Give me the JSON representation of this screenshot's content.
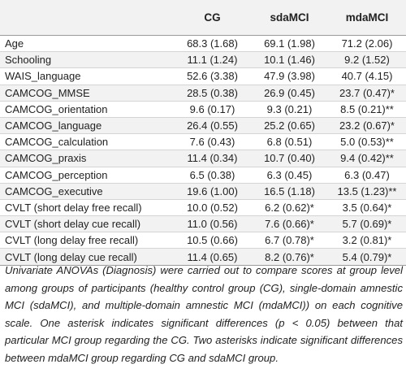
{
  "table": {
    "columns": [
      "",
      "CG",
      "sdaMCI",
      "mdaMCI"
    ],
    "rows": [
      {
        "label": "Age",
        "cg": "68.3 (1.68)",
        "sda": "69.1 (1.98)",
        "mda": "71.2 (2.06)"
      },
      {
        "label": "Schooling",
        "cg": "11.1 (1.24)",
        "sda": "10.1 (1.46)",
        "mda": "9.2 (1.52)"
      },
      {
        "label": "WAIS_language",
        "cg": "52.6 (3.38)",
        "sda": "47.9 (3.98)",
        "mda": "40.7 (4.15)"
      },
      {
        "label": "CAMCOG_MMSE",
        "cg": "28.5 (0.38)",
        "sda": "26.9 (0.45)",
        "mda": "23.7 (0.47)*"
      },
      {
        "label": "CAMCOG_orientation",
        "cg": "9.6 (0.17)",
        "sda": "9.3 (0.21)",
        "mda": "8.5 (0.21)**"
      },
      {
        "label": "CAMCOG_language",
        "cg": "26.4 (0.55)",
        "sda": "25.2 (0.65)",
        "mda": "23.2 (0.67)*"
      },
      {
        "label": "CAMCOG_calculation",
        "cg": "7.6 (0.43)",
        "sda": "6.8 (0.51)",
        "mda": "5.0 (0.53)**"
      },
      {
        "label": "CAMCOG_praxis",
        "cg": "11.4 (0.34)",
        "sda": "10.7 (0.40)",
        "mda": "9.4 (0.42)**"
      },
      {
        "label": "CAMCOG_perception",
        "cg": "6.5 (0.38)",
        "sda": "6.3 (0.45)",
        "mda": "6.3 (0.47)"
      },
      {
        "label": "CAMCOG_executive",
        "cg": "19.6 (1.00)",
        "sda": "16.5 (1.18)",
        "mda": "13.5 (1.23)**"
      },
      {
        "label": "CVLT (short delay free recall)",
        "cg": "10.0 (0.52)",
        "sda": "6.2 (0.62)*",
        "mda": "3.5 (0.64)*"
      },
      {
        "label": "CVLT (short delay cue recall)",
        "cg": "11.0 (0.56)",
        "sda": "7.6 (0.66)*",
        "mda": "5.7 (0.69)*"
      },
      {
        "label": "CVLT (long delay free recall)",
        "cg": "10.5 (0.66)",
        "sda": "6.7 (0.78)*",
        "mda": "3.2 (0.81)*"
      },
      {
        "label": "CVLT (long delay cue recall)",
        "cg": "11.4 (0.65)",
        "sda": "8.2 (0.76)*",
        "mda": "5.4 (0.79)*"
      }
    ]
  },
  "caption": "Univariate ANOVAs (Diagnosis) were carried out to compare scores at group level among groups of participants (healthy control group (CG), single-domain amnestic MCI (sdaMCI), and multiple-domain amnestic MCI (mdaMCI)) on each cognitive scale. One asterisk indicates significant differences (p < 0.05) between that particular MCI group regarding the CG. Two asterisks indicate significant differences between mdaMCI group regarding CG and sdaMCI group."
}
